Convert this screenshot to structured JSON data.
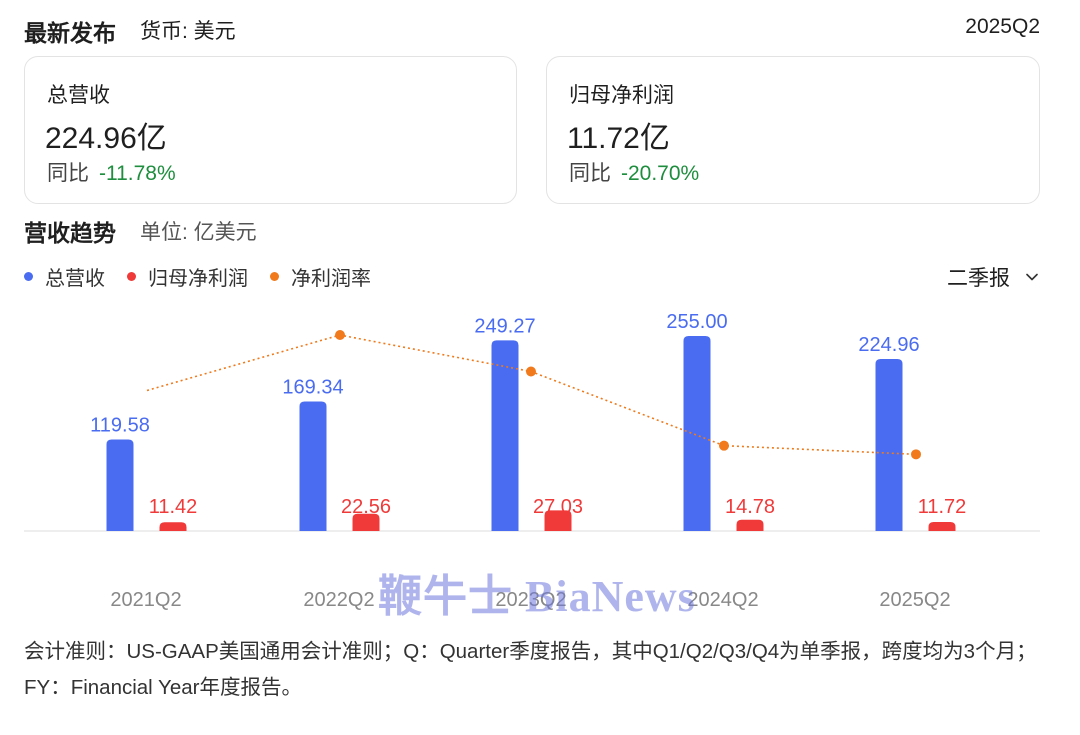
{
  "header": {
    "title": "最新发布",
    "currency": "货币: 美元",
    "period": "2025Q2"
  },
  "cards": [
    {
      "label": "总营收",
      "value": "224.96亿",
      "yoy_label": "同比",
      "yoy_value": "-11.78%"
    },
    {
      "label": "归母净利润",
      "value": "11.72亿",
      "yoy_label": "同比",
      "yoy_value": "-20.70%"
    }
  ],
  "trend": {
    "title": "营收趋势",
    "unit": "单位: 亿美元"
  },
  "legend": [
    {
      "name": "总营收",
      "color": "#4a6cf0"
    },
    {
      "name": "归母净利润",
      "color": "#f03a3a"
    },
    {
      "name": "净利润率",
      "color": "#f07a1c"
    }
  ],
  "period_select": {
    "value": "二季报",
    "icon": "chevron-down-icon"
  },
  "chart_data": {
    "type": "bar",
    "categories": [
      "2021Q2",
      "2022Q2",
      "2023Q2",
      "2024Q2",
      "2025Q2"
    ],
    "series": [
      {
        "name": "总营收",
        "type": "bar",
        "color": "#4a6cf0",
        "values": [
          119.58,
          169.34,
          249.27,
          255.0,
          224.96
        ],
        "labels": [
          "119.58",
          "169.34",
          "249.27",
          "255.00",
          "224.96"
        ]
      },
      {
        "name": "归母净利润",
        "type": "bar",
        "color": "#f03a3a",
        "values": [
          11.42,
          22.56,
          27.03,
          14.78,
          11.72
        ],
        "labels": [
          "11.42",
          "22.56",
          "27.03",
          "14.78",
          "11.72"
        ]
      },
      {
        "name": "净利润率",
        "type": "line",
        "color": "#f07a1c",
        "values": [
          9.55,
          13.32,
          10.84,
          5.8,
          5.21
        ]
      }
    ]
  },
  "watermark": "鞭牛士 BiaNews",
  "footnote": "会计准则：US-GAAP美国通用会计准则；Q：Quarter季度报告，其中Q1/Q2/Q3/Q4为单季报，跨度均为3个月；FY：Financial Year年度报告。"
}
